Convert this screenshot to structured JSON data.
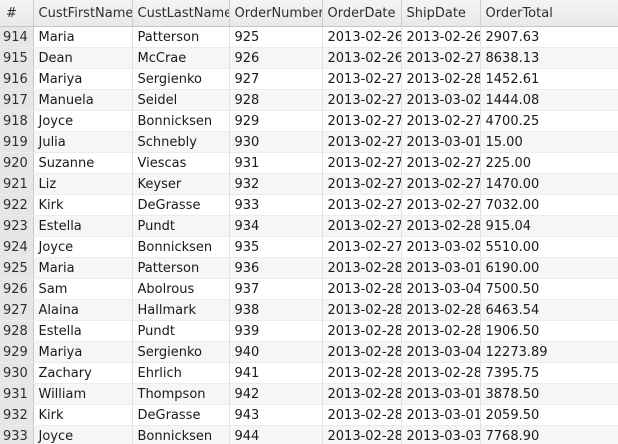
{
  "grid": {
    "columns": [
      "#",
      "CustFirstName",
      "CustLastName",
      "OrderNumber",
      "OrderDate",
      "ShipDate",
      "OrderTotal"
    ],
    "rows": [
      [
        "914",
        "Maria",
        "Patterson",
        "925",
        "2013-02-26",
        "2013-02-26",
        "2907.63"
      ],
      [
        "915",
        "Dean",
        "McCrae",
        "926",
        "2013-02-26",
        "2013-02-27",
        "8638.13"
      ],
      [
        "916",
        "Mariya",
        "Sergienko",
        "927",
        "2013-02-27",
        "2013-02-28",
        "1452.61"
      ],
      [
        "917",
        "Manuela",
        "Seidel",
        "928",
        "2013-02-27",
        "2013-03-02",
        "1444.08"
      ],
      [
        "918",
        "Joyce",
        "Bonnicksen",
        "929",
        "2013-02-27",
        "2013-02-27",
        "4700.25"
      ],
      [
        "919",
        "Julia",
        "Schnebly",
        "930",
        "2013-02-27",
        "2013-03-01",
        "15.00"
      ],
      [
        "920",
        "Suzanne",
        "Viescas",
        "931",
        "2013-02-27",
        "2013-02-27",
        "225.00"
      ],
      [
        "921",
        "Liz",
        "Keyser",
        "932",
        "2013-02-27",
        "2013-02-27",
        "1470.00"
      ],
      [
        "922",
        "Kirk",
        "DeGrasse",
        "933",
        "2013-02-27",
        "2013-02-27",
        "7032.00"
      ],
      [
        "923",
        "Estella",
        "Pundt",
        "934",
        "2013-02-27",
        "2013-02-28",
        "915.04"
      ],
      [
        "924",
        "Joyce",
        "Bonnicksen",
        "935",
        "2013-02-27",
        "2013-03-02",
        "5510.00"
      ],
      [
        "925",
        "Maria",
        "Patterson",
        "936",
        "2013-02-28",
        "2013-03-01",
        "6190.00"
      ],
      [
        "926",
        "Sam",
        "Abolrous",
        "937",
        "2013-02-28",
        "2013-03-04",
        "7500.50"
      ],
      [
        "927",
        "Alaina",
        "Hallmark",
        "938",
        "2013-02-28",
        "2013-02-28",
        "6463.54"
      ],
      [
        "928",
        "Estella",
        "Pundt",
        "939",
        "2013-02-28",
        "2013-02-28",
        "1906.50"
      ],
      [
        "929",
        "Mariya",
        "Sergienko",
        "940",
        "2013-02-28",
        "2013-03-04",
        "12273.89"
      ],
      [
        "930",
        "Zachary",
        "Ehrlich",
        "941",
        "2013-02-28",
        "2013-02-28",
        "7395.75"
      ],
      [
        "931",
        "William",
        "Thompson",
        "942",
        "2013-02-28",
        "2013-03-01",
        "3878.50"
      ],
      [
        "932",
        "Kirk",
        "DeGrasse",
        "943",
        "2013-02-28",
        "2013-03-01",
        "2059.50"
      ],
      [
        "933",
        "Joyce",
        "Bonnicksen",
        "944",
        "2013-02-28",
        "2013-03-03",
        "7768.90"
      ]
    ]
  }
}
